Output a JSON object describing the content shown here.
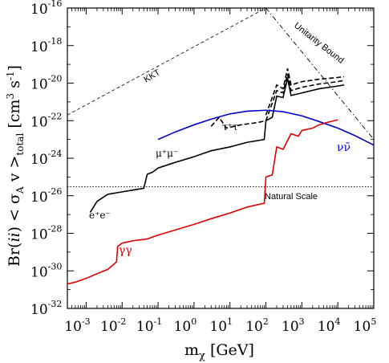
{
  "chart_data": {
    "type": "line",
    "x_scale": "log",
    "y_scale": "log",
    "xlim": [
      0.0003,
      100000
    ],
    "ylim": [
      1e-32,
      1e-16
    ],
    "xlabel": "m_χ [GeV]",
    "ylabel": "Br(ii) < σ_A v >_total [cm^3 s^-1]",
    "x_ticks": [
      {
        "base": "10",
        "exp": "-3",
        "value": 0.001
      },
      {
        "base": "10",
        "exp": "-2",
        "value": 0.01
      },
      {
        "base": "10",
        "exp": "-1",
        "value": 0.1
      },
      {
        "base": "10",
        "exp": "0",
        "value": 1
      },
      {
        "base": "10",
        "exp": "1",
        "value": 10
      },
      {
        "base": "10",
        "exp": "2",
        "value": 100
      },
      {
        "base": "10",
        "exp": "3",
        "value": 1000
      },
      {
        "base": "10",
        "exp": "4",
        "value": 10000
      },
      {
        "base": "10",
        "exp": "5",
        "value": 100000
      }
    ],
    "y_ticks": [
      {
        "base": "10",
        "exp": "-32",
        "value": 1e-32
      },
      {
        "base": "10",
        "exp": "-30",
        "value": 1e-30
      },
      {
        "base": "10",
        "exp": "-28",
        "value": 1e-28
      },
      {
        "base": "10",
        "exp": "-26",
        "value": 1e-26
      },
      {
        "base": "10",
        "exp": "-24",
        "value": 1e-24
      },
      {
        "base": "10",
        "exp": "-22",
        "value": 1e-22
      },
      {
        "base": "10",
        "exp": "-20",
        "value": 1e-20
      },
      {
        "base": "10",
        "exp": "-18",
        "value": 1e-18
      },
      {
        "base": "10",
        "exp": "-16",
        "value": 1e-16
      }
    ],
    "series": [
      {
        "name": "e⁺e⁻ / μ⁺μ⁻",
        "color": "#000000",
        "style": "solid",
        "points": [
          [
            0.0013,
            1.3e-27
          ],
          [
            0.002,
            5e-27
          ],
          [
            0.004,
            1.2e-26
          ],
          [
            0.008,
            1.5e-26
          ],
          [
            0.02,
            2e-26
          ],
          [
            0.04,
            2.5e-26
          ],
          [
            0.05,
            1.4e-25
          ],
          [
            0.07,
            1.8e-25
          ],
          [
            0.1,
            3e-25
          ],
          [
            0.3,
            6e-25
          ],
          [
            1,
            1.2e-24
          ],
          [
            3,
            2.5e-24
          ],
          [
            10,
            4e-24
          ],
          [
            30,
            7e-24
          ],
          [
            90,
            1e-23
          ],
          [
            100,
            1e-22
          ],
          [
            150,
            1.5e-22
          ],
          [
            200,
            2e-21
          ],
          [
            300,
            1.7e-21
          ],
          [
            400,
            1.8e-20
          ],
          [
            500,
            2.2e-21
          ],
          [
            1000,
            3e-21
          ],
          [
            3000,
            5e-21
          ],
          [
            10000,
            7e-21
          ],
          [
            15000,
            8e-21
          ]
        ]
      },
      {
        "name": "τ⁺τ⁻",
        "color": "#000000",
        "style": "dashed",
        "points": [
          [
            3,
            5e-23
          ],
          [
            5,
            1.5e-22
          ],
          [
            8,
            4e-23
          ],
          [
            20,
            6e-23
          ],
          [
            60,
            8e-23
          ],
          [
            100,
            1e-22
          ],
          [
            200,
            4e-21
          ],
          [
            300,
            3e-21
          ],
          [
            400,
            3e-20
          ],
          [
            500,
            4e-21
          ],
          [
            1000,
            6e-21
          ],
          [
            3000,
            9e-21
          ],
          [
            10000,
            1.2e-20
          ],
          [
            15000,
            1.4e-20
          ]
        ]
      },
      {
        "name": "τ⁺τ⁻ (upper)",
        "color": "#000000",
        "style": "dashed",
        "points": [
          [
            100,
            2e-22
          ],
          [
            200,
            8e-21
          ],
          [
            300,
            5e-21
          ],
          [
            400,
            6e-20
          ],
          [
            500,
            8e-21
          ],
          [
            1000,
            1.2e-20
          ],
          [
            3000,
            1.6e-20
          ],
          [
            10000,
            2e-20
          ],
          [
            15000,
            2.2e-20
          ]
        ]
      },
      {
        "name": "νν̄",
        "color": "#0000cc",
        "style": "solid",
        "points": [
          [
            0.1,
            1e-23
          ],
          [
            0.3,
            2.5e-23
          ],
          [
            1,
            6e-23
          ],
          [
            3,
            1.2e-22
          ],
          [
            10,
            2.3e-22
          ],
          [
            30,
            3.2e-22
          ],
          [
            100,
            3.6e-22
          ],
          [
            300,
            3e-22
          ],
          [
            1000,
            1.8e-22
          ],
          [
            3000,
            9e-23
          ],
          [
            10000,
            4e-23
          ],
          [
            30000,
            1.6e-23
          ],
          [
            100000,
            5e-24
          ]
        ]
      },
      {
        "name": "γγ",
        "color": "#dd0000",
        "style": "solid",
        "points": [
          [
            0.0003,
            2e-31
          ],
          [
            0.0005,
            2.5e-31
          ],
          [
            0.001,
            4e-31
          ],
          [
            0.002,
            7e-31
          ],
          [
            0.004,
            1.2e-30
          ],
          [
            0.007,
            3e-30
          ],
          [
            0.0075,
            2e-29
          ],
          [
            0.01,
            3e-29
          ],
          [
            0.02,
            4e-29
          ],
          [
            0.05,
            5e-29
          ],
          [
            0.1,
            8e-29
          ],
          [
            0.3,
            1.5e-28
          ],
          [
            1,
            3e-28
          ],
          [
            3,
            6e-28
          ],
          [
            10,
            1.2e-27
          ],
          [
            30,
            2.5e-27
          ],
          [
            90,
            4e-27
          ],
          [
            100,
            1e-25
          ],
          [
            150,
            1.3e-25
          ],
          [
            200,
            4e-24
          ],
          [
            300,
            3e-24
          ],
          [
            500,
            2e-23
          ],
          [
            800,
            1.5e-23
          ],
          [
            1000,
            3e-23
          ],
          [
            2000,
            4e-23
          ],
          [
            3000,
            6e-23
          ],
          [
            5000,
            8e-23
          ],
          [
            8000,
            1e-22
          ],
          [
            10000,
            1.1e-22
          ]
        ]
      },
      {
        "name": "KKT",
        "color": "#000000",
        "style": "dashed-thin",
        "points": [
          [
            0.0003,
            2e-22
          ],
          [
            100,
            1e-16
          ]
        ]
      },
      {
        "name": "Unitarity Bound",
        "color": "#000000",
        "style": "dashdot",
        "points": [
          [
            100,
            1e-16
          ],
          [
            100000,
            1e-23
          ]
        ]
      },
      {
        "name": "Natural Scale",
        "color": "#000000",
        "style": "dotted",
        "points": [
          [
            0.0003,
            3e-26
          ],
          [
            100000,
            3e-26
          ]
        ]
      }
    ],
    "annotations": {
      "kkt": "KKT",
      "unitarity": "Unitarity Bound",
      "natural": "Natural Scale",
      "ee": "e⁺e⁻",
      "mumu": "μ⁺μ⁻",
      "tautau": "τ⁺τ⁻",
      "nunu": "νν̄",
      "gamgam": "γγ"
    }
  },
  "labels": {
    "x_axis_main": "m",
    "x_axis_sub": "χ",
    "x_axis_unit": " [GeV]",
    "y_axis_pre": "Br(",
    "y_axis_ii": "ii",
    "y_axis_mid": ") < σ",
    "y_axis_sub": "A",
    "y_axis_v": " v >",
    "y_axis_total": "total",
    "y_axis_unit1": "  [cm",
    "y_axis_sup3": "3",
    "y_axis_s": " s",
    "y_axis_sup_m1": "-1",
    "y_axis_close": "]"
  }
}
